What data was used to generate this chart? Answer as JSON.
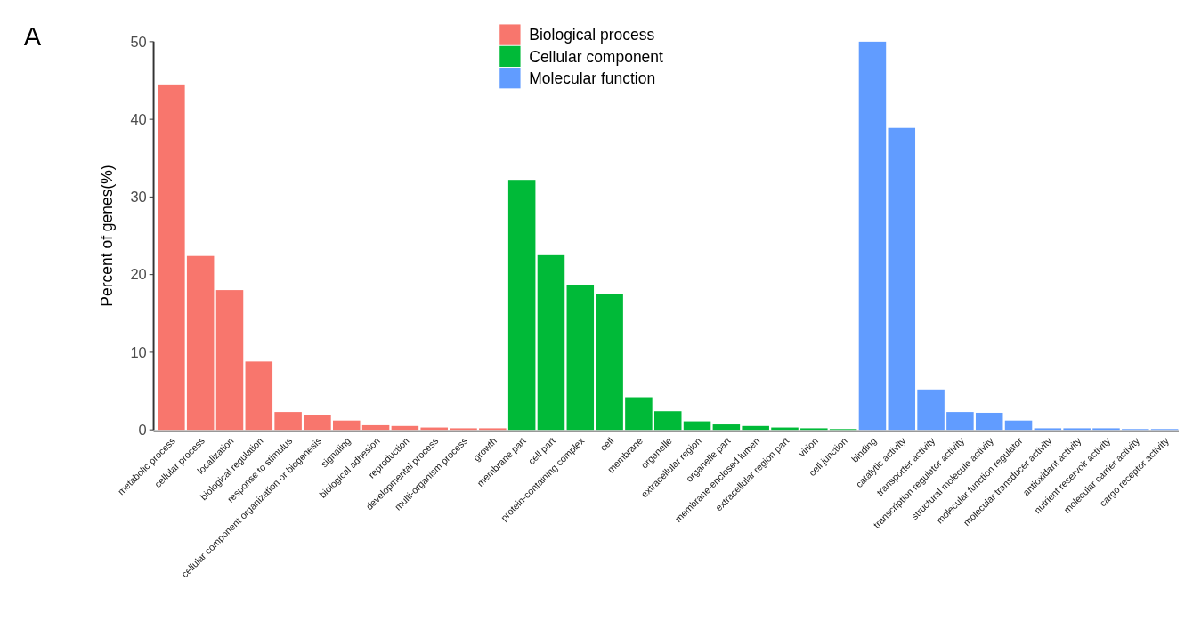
{
  "chart_data": {
    "type": "bar",
    "ylabel": "Percent of genes(%)",
    "annotations": [
      "A"
    ],
    "categories": [
      "metabolic process",
      "cellular process",
      "localization",
      "biological regulation",
      "response to stimulus",
      "cellular component organization or biogenesis",
      "signaling",
      "biological adhesion",
      "reproduction",
      "developmental process",
      "multi-organism process",
      "growth",
      "membrane part",
      "cell part",
      "protein-containing complex",
      "cell",
      "membrane",
      "organelle",
      "extracellular region",
      "organelle part",
      "membrane-enclosed lumen",
      "extracellular region part",
      "virion",
      "cell junction",
      "binding",
      "catalytic activity",
      "transporter activity",
      "transcription regulator activity",
      "structural molecule activity",
      "molecular function regulator",
      "molecular transducer activity",
      "antioxidant activity",
      "nutrient reservoir activity",
      "molecular carrier activity",
      "cargo receptor activity"
    ],
    "series": [
      {
        "name": "Biological process",
        "color": "#f8766d",
        "values": [
          44.5,
          22.4,
          18.0,
          8.8,
          2.3,
          1.9,
          1.2,
          0.6,
          0.5,
          0.3,
          0.2,
          0.2,
          null,
          null,
          null,
          null,
          null,
          null,
          null,
          null,
          null,
          null,
          null,
          null,
          null,
          null,
          null,
          null,
          null,
          null,
          null,
          null,
          null,
          null,
          null
        ]
      },
      {
        "name": "Cellular component",
        "color": "#00ba38",
        "values": [
          null,
          null,
          null,
          null,
          null,
          null,
          null,
          null,
          null,
          null,
          null,
          null,
          32.2,
          22.5,
          18.7,
          17.5,
          4.2,
          2.4,
          1.1,
          0.7,
          0.5,
          0.3,
          0.2,
          0.1,
          null,
          null,
          null,
          null,
          null,
          null,
          null,
          null,
          null,
          null,
          null
        ]
      },
      {
        "name": "Molecular function",
        "color": "#619cff",
        "values": [
          null,
          null,
          null,
          null,
          null,
          null,
          null,
          null,
          null,
          null,
          null,
          null,
          null,
          null,
          null,
          null,
          null,
          null,
          null,
          null,
          null,
          null,
          null,
          null,
          50.0,
          38.9,
          5.2,
          2.3,
          2.2,
          1.2,
          0.2,
          0.2,
          0.2,
          0.1,
          0.1
        ]
      }
    ],
    "ylim": [
      0,
      50
    ],
    "yticks": [
      0,
      10,
      20,
      30,
      40,
      50
    ],
    "grid": false,
    "legend": "top"
  }
}
